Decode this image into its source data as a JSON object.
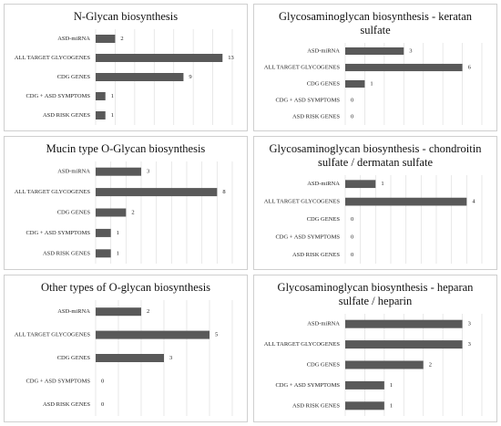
{
  "chart_data": [
    {
      "type": "barh",
      "title": "N-Glycan biosynthesis",
      "categories": [
        "ASD-miRNA",
        "ALL TARGET GLYCOGENES",
        "CDG GENES",
        "CDG + ASD SYMPTOMS",
        "ASD RISK GENES"
      ],
      "values": [
        2,
        13,
        9,
        1,
        1
      ],
      "color": "#595959",
      "xlim": [
        0,
        14
      ],
      "xticks": [
        0,
        2,
        4,
        6,
        8,
        10,
        12,
        14
      ],
      "grid": true
    },
    {
      "type": "barh",
      "title": "Glycosaminoglycan biosynthesis - keratan sulfate",
      "categories": [
        "ASD-miRNA",
        "ALL TARGET GLYCOGENES",
        "CDG GENES",
        "CDG + ASD SYMPTOMS",
        "ASD RISK GENES"
      ],
      "values": [
        3,
        6,
        1,
        0,
        0
      ],
      "color": "#595959",
      "xlim": [
        0,
        7
      ],
      "xticks": [
        0,
        1,
        2,
        3,
        4,
        5,
        6,
        7
      ],
      "grid": true
    },
    {
      "type": "barh",
      "title": "Mucin type O-Glycan biosynthesis",
      "categories": [
        "ASD-miRNA",
        "ALL TARGET GLYCOGENES",
        "CDG GENES",
        "CDG + ASD SYMPTOMS",
        "ASD RISK GENES"
      ],
      "values": [
        3,
        8,
        2,
        1,
        1
      ],
      "color": "#595959",
      "xlim": [
        0,
        9
      ],
      "xticks": [
        0,
        1,
        2,
        3,
        4,
        5,
        6,
        7,
        8,
        9
      ],
      "grid": true
    },
    {
      "type": "barh",
      "title": "Glycosaminoglycan biosynthesis - chondroitin sulfate / dermatan sulfate",
      "categories": [
        "ASD-miRNA",
        "ALL TARGET GLYCOGENES",
        "CDG GENES",
        "CDG + ASD SYMPTOMS",
        "ASD RISK GENES"
      ],
      "values": [
        1,
        4,
        0,
        0,
        0
      ],
      "color": "#595959",
      "xlim": [
        0,
        4.5
      ],
      "xticks": [
        0,
        0.5,
        1,
        1.5,
        2,
        2.5,
        3,
        3.5,
        4,
        4.5
      ],
      "grid": true
    },
    {
      "type": "barh",
      "title": "Other types of O-glycan biosynthesis",
      "categories": [
        "ASD-miRNA",
        "ALL TARGET GLYCOGENES",
        "CDG GENES",
        "CDG + ASD SYMPTOMS",
        "ASD RISK GENES"
      ],
      "values": [
        2,
        5,
        3,
        0,
        0
      ],
      "color": "#595959",
      "xlim": [
        0,
        6
      ],
      "xticks": [
        0,
        1,
        2,
        3,
        4,
        5,
        6
      ],
      "grid": true
    },
    {
      "type": "barh",
      "title": "Glycosaminoglycan biosynthesis - heparan sulfate / heparin",
      "categories": [
        "ASD-miRNA",
        "ALL TARGET GLYCOGENES",
        "CDG GENES",
        "CDG + ASD SYMPTOMS",
        "ASD RISK GENES"
      ],
      "values": [
        3,
        3,
        2,
        1,
        1
      ],
      "color": "#595959",
      "xlim": [
        0,
        3.5
      ],
      "xticks": [
        0,
        0.5,
        1,
        1.5,
        2,
        2.5,
        3,
        3.5
      ],
      "grid": true
    }
  ]
}
